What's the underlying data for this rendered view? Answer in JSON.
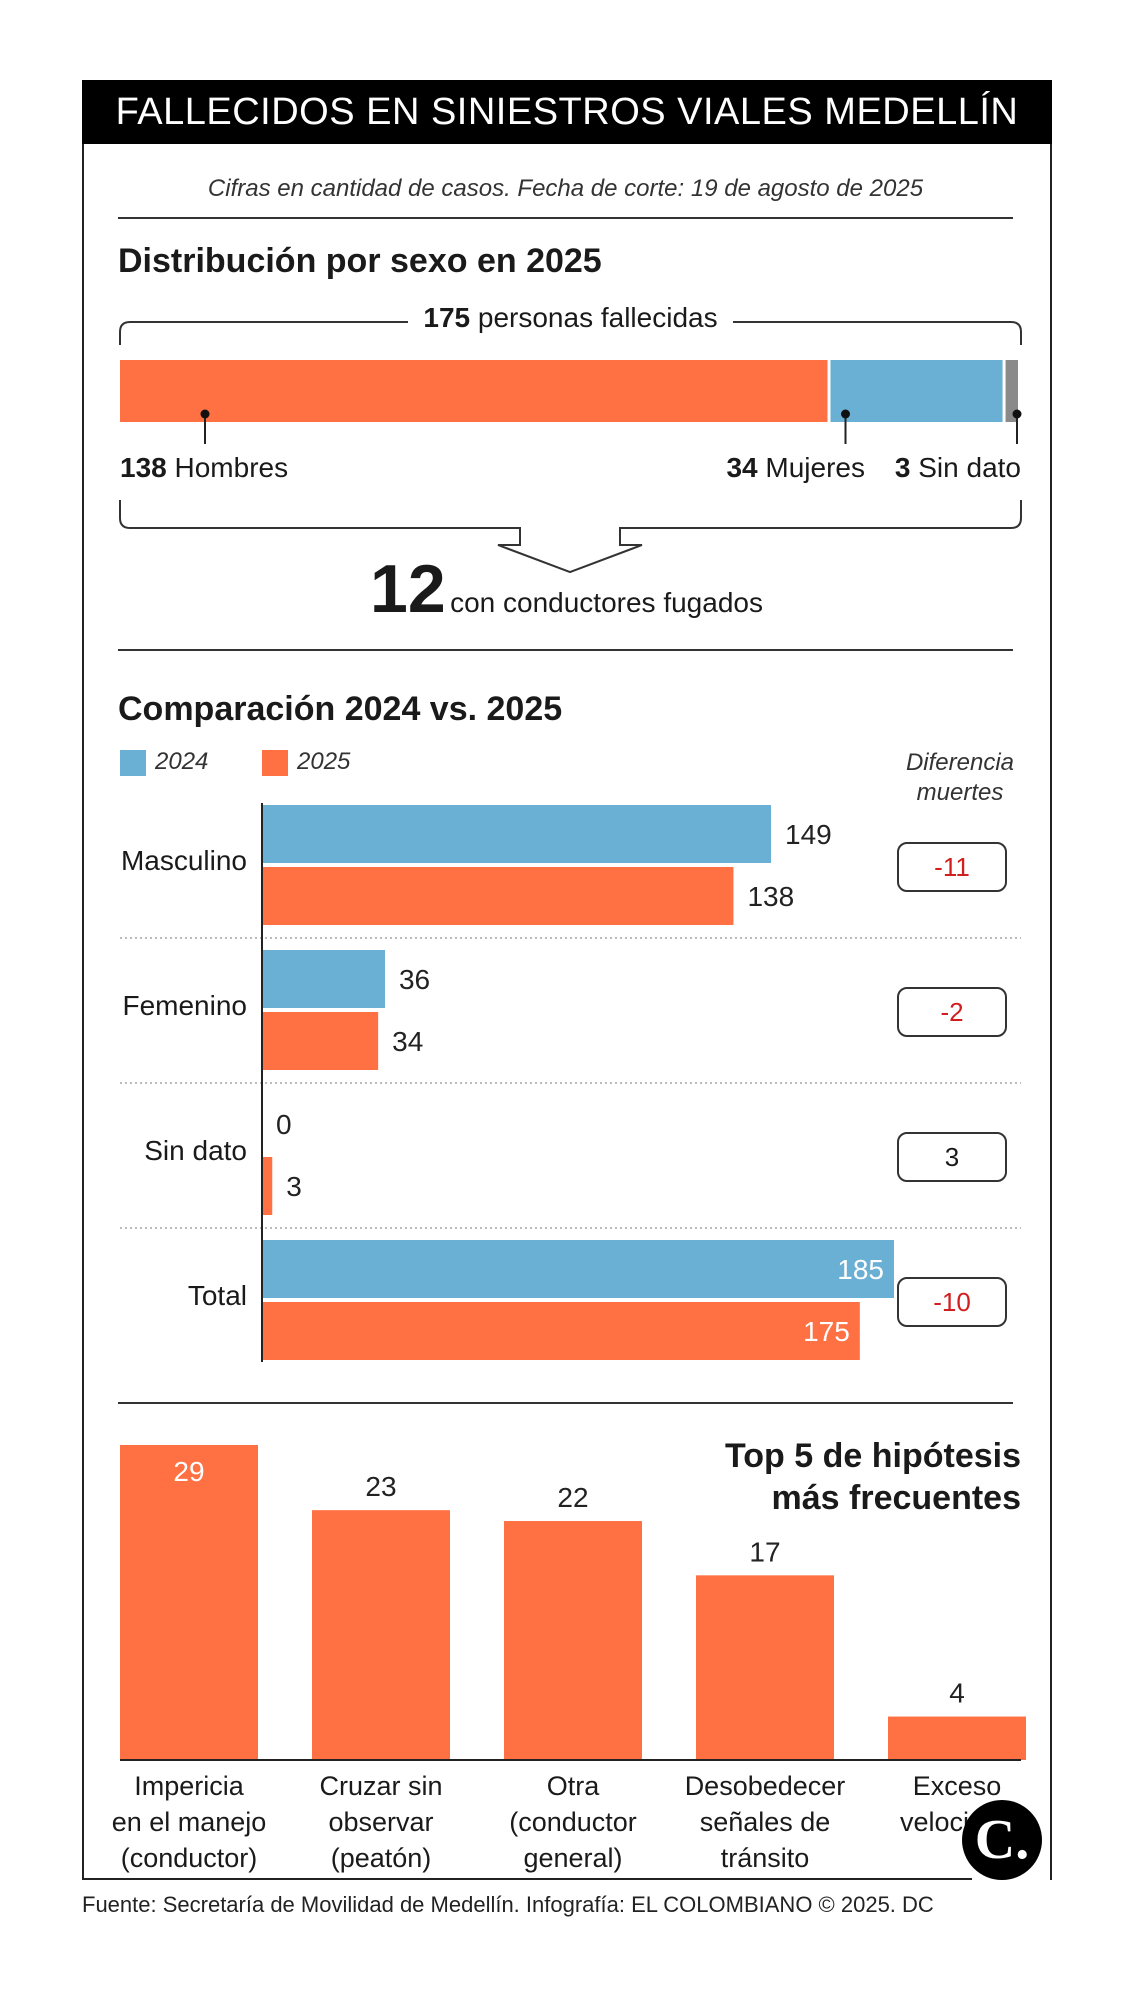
{
  "header": {
    "title": "FALLECIDOS EN SINIESTROS VIALES MEDELLÍN",
    "subtitle": "Cifras en cantidad de casos. Fecha de corte: 19 de agosto de 2025"
  },
  "colors": {
    "y2024": "#6aafd4",
    "y2025": "#ff7043",
    "nodata": "#8a8a8a",
    "negative": "#d11f1f"
  },
  "sex_distribution": {
    "title": "Distribución por sexo en 2025",
    "total_value": "175",
    "total_label": "personas fallecidas",
    "segments": [
      {
        "value": "138",
        "label": "Hombres",
        "num": 138,
        "color": "#ff7043"
      },
      {
        "value": "34",
        "label": "Mujeres",
        "num": 34,
        "color": "#6aafd4"
      },
      {
        "value": "3",
        "label": "Sin dato",
        "num": 3,
        "color": "#8a8a8a"
      }
    ],
    "fugitive_value": "12",
    "fugitive_label": "con conductores fugados"
  },
  "comparison": {
    "title": "Comparación 2024 vs. 2025",
    "legend_2024": "2024",
    "legend_2025": "2025",
    "diff_header_line1": "Diferencia",
    "diff_header_line2": "muertes",
    "rows": [
      {
        "label": "Masculino",
        "v2024": 149,
        "v2025": 138,
        "diff": "-11"
      },
      {
        "label": "Femenino",
        "v2024": 36,
        "v2025": 34,
        "diff": "-2"
      },
      {
        "label": "Sin dato",
        "v2024": 0,
        "v2025": 3,
        "diff": "3"
      },
      {
        "label": "Total",
        "v2024": 185,
        "v2025": 175,
        "diff": "-10"
      }
    ]
  },
  "hypotheses": {
    "title_line1": "Top 5 de hipótesis",
    "title_line2": "más frecuentes",
    "items": [
      {
        "value": 29,
        "label_lines": [
          "Impericia",
          "en el manejo",
          "(conductor)"
        ]
      },
      {
        "value": 23,
        "label_lines": [
          "Cruzar sin",
          "observar",
          "(peatón)"
        ]
      },
      {
        "value": 22,
        "label_lines": [
          "Otra",
          "(conductor",
          "general)"
        ]
      },
      {
        "value": 17,
        "label_lines": [
          "Desobedecer",
          "señales de",
          "tránsito"
        ]
      },
      {
        "value": 4,
        "label_lines": [
          "Exceso",
          "velocidad"
        ]
      }
    ]
  },
  "logo_letter": "C.",
  "source": "Fuente: Secretaría de Movilidad de Medellín. Infografía: EL COLOMBIANO © 2025. DC",
  "chart_data": [
    {
      "type": "bar",
      "title": "Distribución por sexo en 2025",
      "orientation": "stacked-horizontal",
      "categories": [
        "Hombres",
        "Mujeres",
        "Sin dato"
      ],
      "values": [
        138,
        34,
        3
      ],
      "total": 175
    },
    {
      "type": "bar",
      "title": "Comparación 2024 vs. 2025",
      "orientation": "horizontal",
      "categories": [
        "Masculino",
        "Femenino",
        "Sin dato",
        "Total"
      ],
      "series": [
        {
          "name": "2024",
          "values": [
            149,
            36,
            0,
            185
          ]
        },
        {
          "name": "2025",
          "values": [
            138,
            34,
            3,
            175
          ]
        }
      ],
      "difference": [
        -11,
        -2,
        3,
        -10
      ],
      "xlim": [
        0,
        185
      ]
    },
    {
      "type": "bar",
      "title": "Top 5 de hipótesis más frecuentes",
      "categories": [
        "Impericia en el manejo (conductor)",
        "Cruzar sin observar (peatón)",
        "Otra (conductor general)",
        "Desobedecer señales de tránsito",
        "Exceso velocidad"
      ],
      "values": [
        29,
        23,
        22,
        17,
        4
      ],
      "ylim": [
        0,
        29
      ]
    }
  ]
}
